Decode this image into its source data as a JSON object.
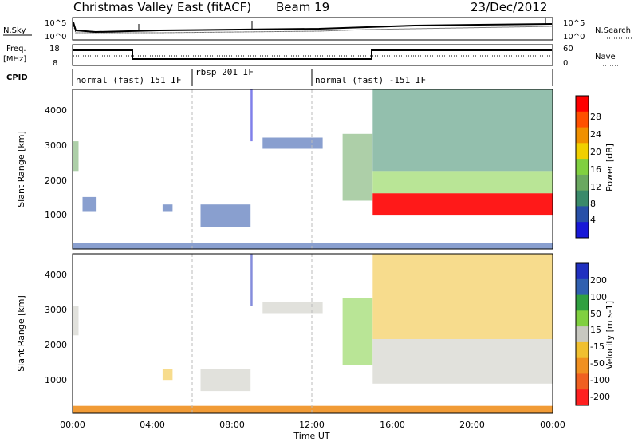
{
  "header": {
    "title": "Christmas Valley East (fitACF)",
    "beam": "Beam 19",
    "date": "23/Dec/2012"
  },
  "top_panels": {
    "nsky_label": "N.Sky",
    "nsky_ticks": [
      "10^5",
      "10^0"
    ],
    "nsearch_label": "N.Search",
    "nsearch_ticks": [
      "10^5",
      "10^0"
    ],
    "freq_label": "Freq.",
    "freq_unit": "[MHz]",
    "freq_ticks": [
      "18",
      "8"
    ],
    "nave_label": "Nave",
    "nave_ticks": [
      "60",
      "0"
    ],
    "cpid_label": "CPID",
    "cpid_segments": [
      {
        "label": "normal (fast) 151 IF",
        "start_h": 0,
        "end_h": 6
      },
      {
        "label": "rbsp 201 IF",
        "start_h": 6,
        "end_h": 12
      },
      {
        "label": "normal (fast) -151 IF",
        "start_h": 12,
        "end_h": 24
      }
    ],
    "freq_mhz_series": [
      {
        "start_h": 0,
        "end_h": 3,
        "value": 15
      },
      {
        "start_h": 3,
        "end_h": 15,
        "value": 10
      },
      {
        "start_h": 15,
        "end_h": 24,
        "value": 15
      }
    ]
  },
  "colors": {
    "power": [
      "#1818d8",
      "#2850a8",
      "#3a8a6a",
      "#6aa860",
      "#80d040",
      "#f0d000",
      "#f09000",
      "#ff5000",
      "#ff0000"
    ],
    "velocity": [
      "#2030c0",
      "#3060b0",
      "#30a040",
      "#80d040",
      "#c8c8c0",
      "#f0c030",
      "#f09020",
      "#f06020",
      "#ff2020"
    ],
    "dashed_marker": "#bbbbbb"
  },
  "chart_data": [
    {
      "type": "heatmap",
      "name": "Power",
      "ylabel": "Slant Range [km]",
      "yticks": [
        "1000",
        "2000",
        "3000",
        "4000"
      ],
      "ylim": [
        200,
        4500
      ],
      "xlim_h": [
        0,
        24
      ],
      "colorbar_label": "Power [dB]",
      "colorbar_ticks": [
        "4",
        "8",
        "12",
        "16",
        "20",
        "24",
        "28"
      ],
      "scatter_regions": [
        {
          "t0": 0.0,
          "t1": 0.3,
          "r0": 2300,
          "r1": 3100,
          "level": 3
        },
        {
          "t0": 0.5,
          "t1": 1.2,
          "r0": 1200,
          "r1": 1600,
          "level": 1
        },
        {
          "t0": 4.5,
          "t1": 5.0,
          "r0": 1200,
          "r1": 1400,
          "level": 1
        },
        {
          "t0": 6.4,
          "t1": 8.9,
          "r0": 800,
          "r1": 1400,
          "level": 1
        },
        {
          "t0": 8.9,
          "t1": 9.0,
          "r0": 3100,
          "r1": 4500,
          "level": 0
        },
        {
          "t0": 9.5,
          "t1": 12.5,
          "r0": 2900,
          "r1": 3200,
          "level": 1
        },
        {
          "t0": 13.5,
          "t1": 15.0,
          "r0": 1500,
          "r1": 3300,
          "level": 3
        },
        {
          "t0": 15.0,
          "t1": 24.0,
          "r0": 1100,
          "r1": 1700,
          "level": 8
        },
        {
          "t0": 15.0,
          "t1": 24.0,
          "r0": 1700,
          "r1": 2300,
          "level": 4
        },
        {
          "t0": 15.0,
          "t1": 24.0,
          "r0": 2300,
          "r1": 4500,
          "level": 2
        },
        {
          "t0": 0.0,
          "t1": 24.0,
          "r0": 200,
          "r1": 350,
          "level": 1
        }
      ]
    },
    {
      "type": "heatmap",
      "name": "Velocity",
      "ylabel": "Slant Range [km]",
      "xlabel": "Time UT",
      "xticks": [
        "00:00",
        "04:00",
        "08:00",
        "12:00",
        "16:00",
        "20:00",
        "00:00"
      ],
      "yticks": [
        "1000",
        "2000",
        "3000",
        "4000"
      ],
      "ylim": [
        200,
        4500
      ],
      "xlim_h": [
        0,
        24
      ],
      "colorbar_label": "Velocity [m s-1]",
      "colorbar_ticks": [
        "200",
        "100",
        "50",
        "15",
        "-15",
        "-50",
        "-100",
        "-200"
      ],
      "scatter_regions": [
        {
          "t0": 0.0,
          "t1": 0.3,
          "r0": 2300,
          "r1": 3100,
          "level": 4
        },
        {
          "t0": 4.5,
          "t1": 5.0,
          "r0": 1100,
          "r1": 1400,
          "level": 5
        },
        {
          "t0": 6.4,
          "t1": 8.9,
          "r0": 800,
          "r1": 1400,
          "level": 4
        },
        {
          "t0": 8.9,
          "t1": 9.0,
          "r0": 3100,
          "r1": 4500,
          "level": 0
        },
        {
          "t0": 9.5,
          "t1": 12.5,
          "r0": 2900,
          "r1": 3200,
          "level": 4
        },
        {
          "t0": 13.5,
          "t1": 15.0,
          "r0": 1500,
          "r1": 3300,
          "level": 3
        },
        {
          "t0": 15.0,
          "t1": 24.0,
          "r0": 1000,
          "r1": 2200,
          "level": 4
        },
        {
          "t0": 15.0,
          "t1": 24.0,
          "r0": 2200,
          "r1": 4500,
          "level": 5
        },
        {
          "t0": 0.0,
          "t1": 24.0,
          "r0": 200,
          "r1": 400,
          "level": 6
        }
      ]
    }
  ]
}
